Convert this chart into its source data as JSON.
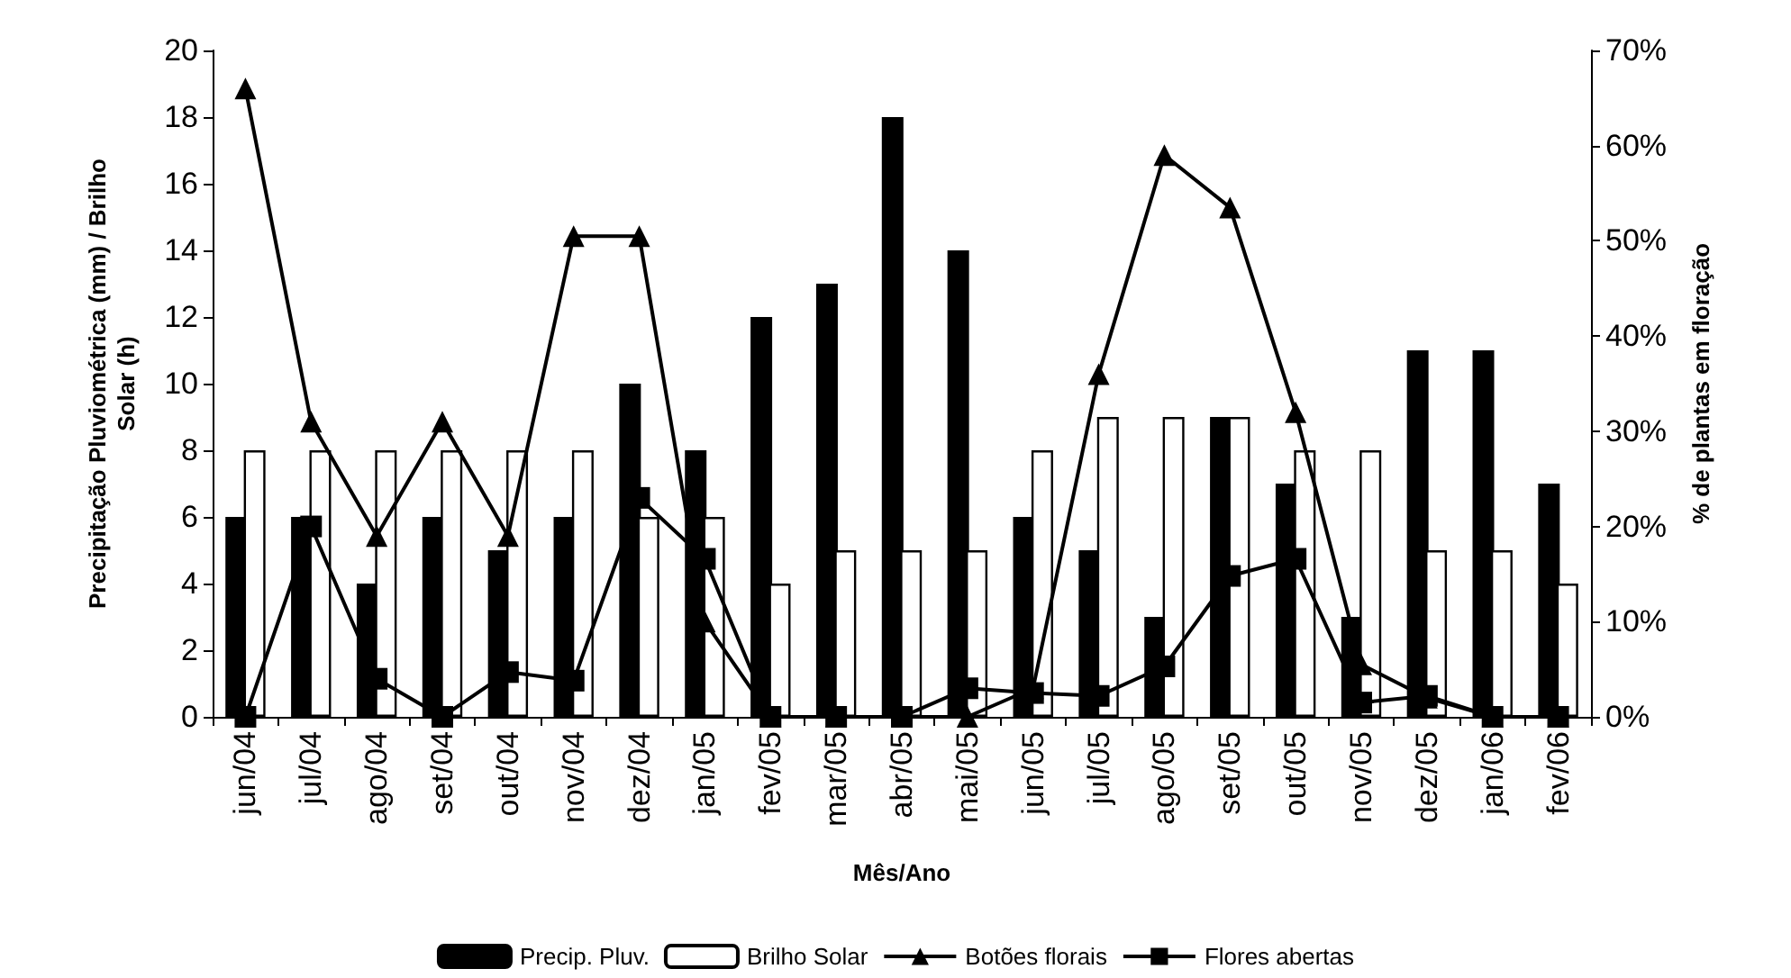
{
  "chart_data": {
    "type": "bar",
    "xlabel": "Mês/Ano",
    "ylabel": "Precipitação Pluviométrica (mm) / Brilho Solar (h)",
    "y2label": "% de plantas em floração",
    "categories": [
      "jun/04",
      "jul/04",
      "ago/04",
      "set/04",
      "out/04",
      "nov/04",
      "dez/04",
      "jan/05",
      "fev/05",
      "mar/05",
      "abr/05",
      "mai/05",
      "jun/05",
      "jul/05",
      "ago/05",
      "set/05",
      "out/05",
      "nov/05",
      "dez/05",
      "jan/06",
      "fev/06"
    ],
    "series": [
      {
        "name": "Precip. Pluv.",
        "color": "#000000",
        "values": [
          6,
          6,
          4,
          6,
          5,
          6,
          10,
          8,
          12,
          13,
          18,
          14,
          6,
          5,
          3,
          9,
          7,
          3,
          11,
          11,
          7
        ]
      },
      {
        "name": "Brilho Solar",
        "color": "#ffffff",
        "values": [
          8,
          8,
          8,
          8,
          8,
          8,
          6,
          6,
          4,
          5,
          5,
          5,
          8,
          9,
          9,
          9,
          8,
          8,
          5,
          5,
          4
        ]
      },
      {
        "name": "Botões florais",
        "type": "line",
        "axis": "y2",
        "marker": "triangle",
        "color": "#000000",
        "values": [
          66,
          31,
          19,
          31,
          19,
          50.5,
          50.5,
          10,
          0,
          0,
          0,
          0,
          3,
          36,
          59,
          53.5,
          32,
          5.5,
          2,
          0,
          0
        ]
      },
      {
        "name": "Flores abertas",
        "type": "line",
        "axis": "y2",
        "marker": "square",
        "color": "#000000",
        "values": [
          0,
          20,
          4,
          0,
          4.7,
          3.8,
          23,
          16.6,
          0,
          0,
          0,
          3,
          2.5,
          2.2,
          5.3,
          14.8,
          16.6,
          1.5,
          2.2,
          0,
          0
        ]
      }
    ],
    "ylim": [
      0,
      20
    ],
    "yticks": [
      0,
      2,
      4,
      6,
      8,
      10,
      12,
      14,
      16,
      18,
      20
    ],
    "y2lim": [
      0,
      70
    ],
    "y2ticks": [
      {
        "value": 0,
        "label": "0%"
      },
      {
        "value": 10,
        "label": "10%"
      },
      {
        "value": 20,
        "label": "20%"
      },
      {
        "value": 30,
        "label": "30%"
      },
      {
        "value": 40,
        "label": "40%"
      },
      {
        "value": 50,
        "label": "50%"
      },
      {
        "value": 60,
        "label": "60%"
      },
      {
        "value": 70,
        "label": "70%"
      }
    ],
    "grid": false,
    "legend": "bottom",
    "line_style": "solid"
  }
}
